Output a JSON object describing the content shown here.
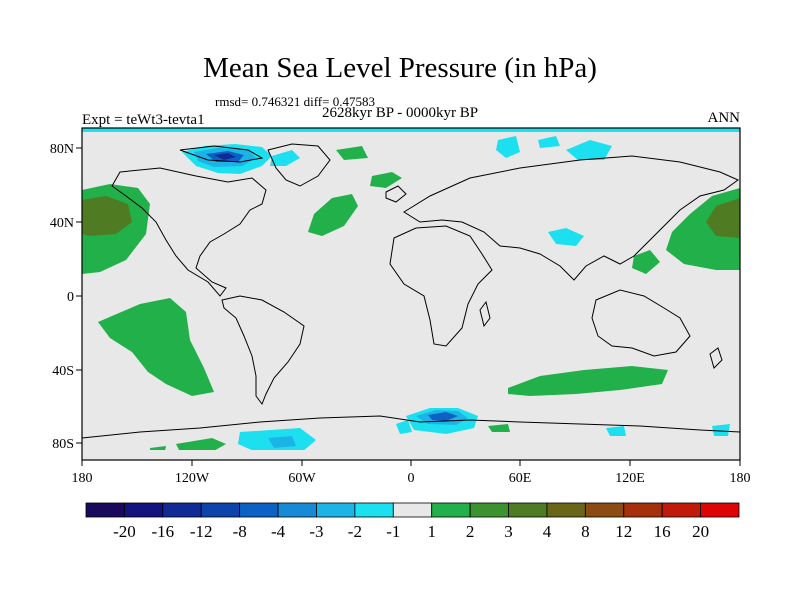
{
  "title": "Mean Sea Level Pressure (in hPa)",
  "stats": "rmsd= 0.746321 diff= 0.47583",
  "period": "2628kyr BP - 0000kyr BP",
  "experiment": "Expt = teWt3-tevta1",
  "season": "ANN",
  "lon_labels": [
    "180",
    "120W",
    "60W",
    "0",
    "60E",
    "120E",
    "180"
  ],
  "lat_labels": [
    "80N",
    "40N",
    "0",
    "40S",
    "80S"
  ],
  "colorbar": {
    "labels": [
      "-20",
      "-16",
      "-12",
      "-8",
      "-4",
      "-3",
      "-2",
      "-1",
      "1",
      "2",
      "3",
      "4",
      "8",
      "12",
      "16",
      "20"
    ],
    "colors": [
      "#1a0a5c",
      "#141480",
      "#102a96",
      "#0c44ac",
      "#0c62c4",
      "#168ad6",
      "#1cb4e6",
      "#1ce0f0",
      "#e8e8e8",
      "#22b04a",
      "#3c922e",
      "#4f7c22",
      "#6a6618",
      "#8a4c12",
      "#a6300c",
      "#c21a08",
      "#de0404"
    ]
  },
  "colors": {
    "land_background": "#e8e8e8",
    "green": "#22b04a",
    "dark_olive": "#4f7c22",
    "cyan": "#1ce0f0",
    "light_blue": "#1cb4e6",
    "blue": "#0c62c4",
    "dark_blue": "#102a96"
  }
}
